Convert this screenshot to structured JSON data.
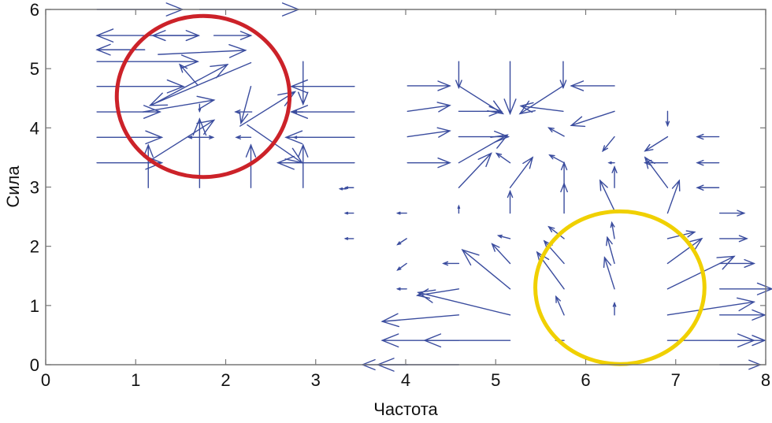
{
  "chart_data": {
    "type": "quiver",
    "title": "",
    "xlabel": "Частота",
    "ylabel": "Сила",
    "xlim": [
      0,
      8
    ],
    "ylim": [
      0,
      6
    ],
    "xticks": [
      "0",
      "1",
      "2",
      "3",
      "4",
      "5",
      "6",
      "7",
      "8"
    ],
    "yticks": [
      "0",
      "1",
      "2",
      "3",
      "4",
      "5",
      "6"
    ],
    "grid": false,
    "arrow_color": "#3a4c9e",
    "arrows_format": "[x_tail, y_tail, u, v]",
    "arrows": [
      [
        0.57,
        6.0,
        0.95,
        0
      ],
      [
        1.71,
        6.0,
        1.1,
        0
      ],
      [
        1.23,
        5.56,
        -0.66,
        0
      ],
      [
        1.69,
        5.56,
        -0.5,
        0
      ],
      [
        1.2,
        5.56,
        0.5,
        0
      ],
      [
        1.87,
        5.56,
        0.41,
        0
      ],
      [
        1.1,
        5.32,
        -0.53,
        0
      ],
      [
        1.25,
        5.24,
        0.97,
        0.07
      ],
      [
        0.57,
        5.12,
        1.12,
        0
      ],
      [
        2.28,
        5.1,
        -1.12,
        -0.72
      ],
      [
        1.69,
        4.72,
        -0.2,
        0.35
      ],
      [
        1.17,
        4.38,
        0.85,
        0.69
      ],
      [
        0.57,
        4.7,
        0.96,
        0
      ],
      [
        3.43,
        4.7,
        -0.7,
        0
      ],
      [
        2.86,
        5.12,
        0,
        -0.72
      ],
      [
        1.08,
        4.27,
        0.79,
        0.2
      ],
      [
        0.57,
        4.27,
        0.7,
        0
      ],
      [
        2.29,
        4.27,
        -0.18,
        0
      ],
      [
        3.43,
        4.27,
        -0.7,
        0
      ],
      [
        2.86,
        4.27,
        -0.1,
        0
      ],
      [
        1.71,
        4.4,
        0,
        -0.12
      ],
      [
        2.16,
        4.03,
        0.61,
        0.58
      ],
      [
        2.28,
        4.7,
        -0.11,
        -0.62
      ],
      [
        0.57,
        3.84,
        0.72,
        0
      ],
      [
        1.71,
        3.84,
        -0.12,
        0
      ],
      [
        1.71,
        3.84,
        0.15,
        0
      ],
      [
        2.28,
        3.84,
        -0.16,
        0
      ],
      [
        3.43,
        3.84,
        -0.76,
        0
      ],
      [
        2.86,
        3.84,
        -0.1,
        0
      ],
      [
        0.57,
        3.41,
        0.72,
        0
      ],
      [
        1.14,
        3.43,
        0.73,
        0.7
      ],
      [
        3.43,
        3.41,
        -0.85,
        0
      ],
      [
        2.24,
        4.05,
        0.61,
        -0.64
      ],
      [
        1.14,
        2.99,
        0,
        0.72
      ],
      [
        1.71,
        2.99,
        0,
        1.16
      ],
      [
        2.28,
        2.99,
        0,
        0.72
      ],
      [
        2.86,
        2.99,
        0,
        0.72
      ],
      [
        3.34,
        2.97,
        -0.07,
        0
      ],
      [
        4.02,
        4.71,
        0.47,
        0
      ],
      [
        4.59,
        5.12,
        0,
        -0.44
      ],
      [
        5.16,
        5.12,
        0,
        -0.88
      ],
      [
        5.75,
        5.12,
        0,
        -0.44
      ],
      [
        6.32,
        4.71,
        -0.48,
        0
      ],
      [
        4.59,
        4.71,
        0.49,
        -0.47
      ],
      [
        5.75,
        4.71,
        -0.48,
        -0.47
      ],
      [
        5.75,
        4.28,
        -0.47,
        0.09
      ],
      [
        4.59,
        4.28,
        0.47,
        0
      ],
      [
        4.02,
        4.28,
        0.47,
        0.1
      ],
      [
        6.32,
        4.28,
        -0.48,
        -0.24
      ],
      [
        4.02,
        3.85,
        0.47,
        0.1
      ],
      [
        4.59,
        3.85,
        0.55,
        0
      ],
      [
        4.59,
        3.41,
        0.54,
        0.47
      ],
      [
        5.76,
        3.86,
        -0.17,
        0.14
      ],
      [
        6.91,
        4.28,
        0,
        -0.24
      ],
      [
        6.91,
        3.85,
        -0.25,
        -0.24
      ],
      [
        6.32,
        3.85,
        -0.13,
        -0.24
      ],
      [
        7.48,
        3.85,
        -0.24,
        0
      ],
      [
        4.02,
        3.41,
        0.47,
        0
      ],
      [
        4.59,
        2.99,
        0.36,
        0.58
      ],
      [
        5.16,
        3.41,
        -0.15,
        0.16
      ],
      [
        5.16,
        2.99,
        0.25,
        0.51
      ],
      [
        5.76,
        3.41,
        -0.16,
        0.13
      ],
      [
        5.76,
        2.99,
        0,
        0.42
      ],
      [
        5.76,
        2.56,
        0,
        0.5
      ],
      [
        5.16,
        2.56,
        0,
        0.37
      ],
      [
        6.32,
        2.99,
        0,
        0.35
      ],
      [
        6.32,
        2.6,
        -0.16,
        0.51
      ],
      [
        6.91,
        2.99,
        -0.25,
        0.51
      ],
      [
        6.91,
        2.56,
        0.13,
        0.55
      ],
      [
        6.91,
        3.41,
        -0.25,
        0
      ],
      [
        6.32,
        3.41,
        -0.06,
        0
      ],
      [
        7.48,
        3.41,
        -0.24,
        0
      ],
      [
        7.48,
        2.99,
        -0.24,
        0
      ],
      [
        3.42,
        2.99,
        -0.09,
        0
      ],
      [
        3.42,
        2.56,
        -0.09,
        0
      ],
      [
        3.42,
        2.13,
        -0.09,
        0
      ],
      [
        4.01,
        2.56,
        -0.1,
        0
      ],
      [
        4.59,
        2.56,
        0,
        0.12
      ],
      [
        7.49,
        2.56,
        0.27,
        0
      ],
      [
        4.01,
        2.13,
        -0.1,
        -0.1
      ],
      [
        5.16,
        2.13,
        -0.13,
        0.05
      ],
      [
        5.76,
        2.13,
        -0.17,
        0.2
      ],
      [
        6.32,
        2.13,
        -0.03,
        0.27
      ],
      [
        6.91,
        2.13,
        0.3,
        0.11
      ],
      [
        7.49,
        2.13,
        0.3,
        0
      ],
      [
        4.01,
        1.71,
        -0.1,
        -0.11
      ],
      [
        4.59,
        1.71,
        -0.17,
        0
      ],
      [
        5.16,
        1.71,
        -0.2,
        0.33
      ],
      [
        5.76,
        1.71,
        -0.22,
        0.38
      ],
      [
        6.32,
        1.71,
        -0.08,
        0.44
      ],
      [
        6.91,
        1.71,
        0.38,
        0.42
      ],
      [
        7.49,
        1.71,
        0.38,
        0
      ],
      [
        4.01,
        1.28,
        -0.1,
        0
      ],
      [
        4.59,
        1.28,
        -0.46,
        -0.11
      ],
      [
        5.16,
        1.28,
        -0.53,
        0.66
      ],
      [
        5.76,
        1.28,
        -0.3,
        0.62
      ],
      [
        6.32,
        1.28,
        -0.11,
        0.53
      ],
      [
        6.91,
        1.28,
        0.74,
        0.55
      ],
      [
        7.49,
        1.28,
        0.58,
        0
      ],
      [
        5.16,
        0.84,
        -1.02,
        0.38
      ],
      [
        4.59,
        0.84,
        -0.85,
        -0.11
      ],
      [
        5.76,
        0.84,
        -0.09,
        0.31
      ],
      [
        6.32,
        0.84,
        0,
        0.2
      ],
      [
        6.91,
        0.84,
        0.96,
        0.22
      ],
      [
        7.49,
        0.84,
        0.5,
        0
      ],
      [
        5.16,
        0.41,
        -0.95,
        0
      ],
      [
        4.59,
        0.41,
        -0.85,
        0
      ],
      [
        5.76,
        0.41,
        -0.09,
        0
      ],
      [
        6.91,
        0.41,
        0.96,
        0
      ],
      [
        7.49,
        0.41,
        0.5,
        0
      ],
      [
        4.59,
        0.0,
        -0.9,
        0
      ],
      [
        4.02,
        0.0,
        -0.5,
        0
      ],
      [
        7.49,
        0.0,
        0.45,
        0
      ]
    ],
    "annotations": [
      {
        "shape": "ellipse",
        "color": "#cc2229",
        "center": [
          1.75,
          4.53
        ],
        "radius": [
          0.96,
          1.36
        ]
      },
      {
        "shape": "ellipse",
        "color": "#f0d000",
        "center": [
          6.38,
          1.3
        ],
        "radius": [
          0.94,
          1.29
        ]
      }
    ]
  }
}
